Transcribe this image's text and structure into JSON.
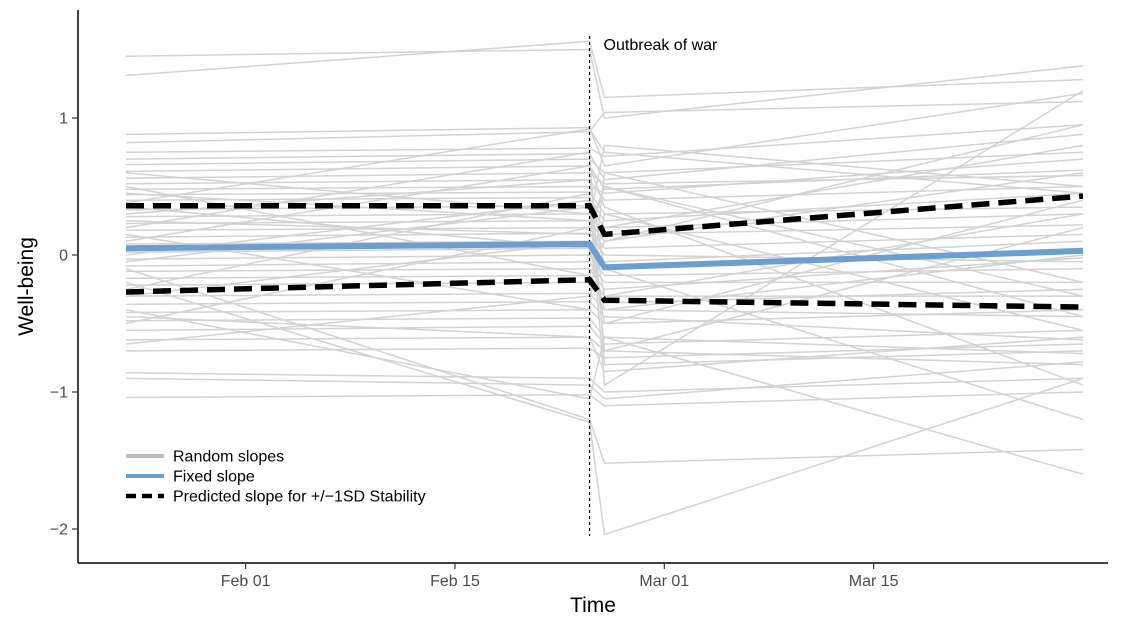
{
  "chart_data": {
    "type": "line",
    "title": "",
    "xlabel": "Time",
    "ylabel": "Well-being",
    "x_axis_type": "date",
    "xlim": [
      "2022-01-24",
      "2022-03-29"
    ],
    "ylim": [
      -2.15,
      1.8
    ],
    "x_ticks": [
      {
        "date": "2022-02-01",
        "label": "Feb 01"
      },
      {
        "date": "2022-02-15",
        "label": "Feb 15"
      },
      {
        "date": "2022-03-01",
        "label": "Mar 01"
      },
      {
        "date": "2022-03-15",
        "label": "Mar 15"
      }
    ],
    "y_ticks": [
      {
        "value": 1,
        "label": "1"
      },
      {
        "value": 0,
        "label": "0"
      },
      {
        "value": -1,
        "label": "−1"
      },
      {
        "value": -2,
        "label": "−2"
      }
    ],
    "grid": false,
    "annotation": {
      "date": "2022-02-24",
      "label": "Outbreak of war"
    },
    "colors": {
      "random": "#d3d3d3",
      "fixed": "#6a9fcf",
      "predicted": "#000000",
      "axis": "#000000"
    },
    "legend": {
      "position": "bottom-left",
      "entries": [
        {
          "label": "Random slopes",
          "style": "solid",
          "color": "#bebebe"
        },
        {
          "label": "Fixed slope",
          "style": "solid",
          "color": "#6a9fcf"
        },
        {
          "label": "Predicted slope for +/−1SD Stability",
          "style": "dashed",
          "color": "#000000"
        }
      ]
    },
    "fixed_slope": {
      "pre": {
        "x": [
          "2022-01-24",
          "2022-02-24"
        ],
        "y": [
          0.05,
          0.08
        ]
      },
      "post": {
        "x": [
          "2022-02-25",
          "2022-03-29"
        ],
        "y": [
          -0.09,
          0.03
        ]
      }
    },
    "predicted_slopes": [
      {
        "pre": {
          "x": [
            "2022-01-24",
            "2022-02-24"
          ],
          "y": [
            0.36,
            0.36
          ]
        },
        "post": {
          "x": [
            "2022-02-25",
            "2022-03-29"
          ],
          "y": [
            0.15,
            0.43
          ]
        }
      },
      {
        "pre": {
          "x": [
            "2022-01-24",
            "2022-02-24"
          ],
          "y": [
            -0.27,
            -0.18
          ]
        },
        "post": {
          "x": [
            "2022-02-25",
            "2022-03-29"
          ],
          "y": [
            -0.33,
            -0.38
          ]
        }
      }
    ],
    "random_slopes": [
      [
        1.45,
        1.5,
        1.0,
        1.38
      ],
      [
        1.31,
        1.56,
        1.15,
        1.28
      ],
      [
        0.88,
        0.93,
        0.65,
        1.18
      ],
      [
        0.82,
        0.9,
        1.04,
        1.12
      ],
      [
        0.75,
        0.78,
        0.72,
        0.95
      ],
      [
        0.7,
        0.74,
        0.55,
        0.88
      ],
      [
        0.66,
        0.7,
        0.6,
        0.75
      ],
      [
        0.61,
        0.65,
        0.48,
        0.62
      ],
      [
        0.56,
        0.6,
        0.52,
        0.58
      ],
      [
        0.52,
        0.55,
        0.4,
        0.5
      ],
      [
        0.48,
        0.5,
        0.45,
        0.7
      ],
      [
        0.44,
        0.46,
        0.3,
        0.35
      ],
      [
        0.4,
        0.42,
        0.25,
        0.45
      ],
      [
        0.33,
        0.36,
        0.2,
        0.3
      ],
      [
        0.28,
        0.3,
        0.15,
        0.22
      ],
      [
        0.23,
        0.25,
        0.1,
        0.6
      ],
      [
        0.18,
        0.2,
        0.05,
        0.15
      ],
      [
        0.13,
        0.16,
        0.0,
        -0.05
      ],
      [
        0.08,
        0.1,
        -0.05,
        0.1
      ],
      [
        0.02,
        0.05,
        -0.1,
        0.05
      ],
      [
        -0.03,
        0.0,
        -0.15,
        -0.1
      ],
      [
        -0.08,
        -0.05,
        -0.2,
        -0.2
      ],
      [
        -0.12,
        -0.1,
        -0.25,
        -0.02
      ],
      [
        -0.17,
        -0.15,
        -0.3,
        -0.3
      ],
      [
        -0.22,
        -0.2,
        -0.35,
        -0.25
      ],
      [
        -0.3,
        -0.28,
        -0.4,
        -0.45
      ],
      [
        -0.36,
        -0.34,
        -0.45,
        -0.62
      ],
      [
        -0.42,
        -0.4,
        -0.5,
        -0.4
      ],
      [
        -0.48,
        -0.46,
        -0.6,
        -0.72
      ],
      [
        -0.55,
        -0.52,
        -0.65,
        -0.55
      ],
      [
        -0.62,
        -0.6,
        -0.7,
        -0.8
      ],
      [
        -0.7,
        -0.68,
        -0.75,
        -0.65
      ],
      [
        -0.86,
        -0.9,
        -1.0,
        -0.9
      ],
      [
        -0.9,
        -0.95,
        -1.05,
        -0.78
      ],
      [
        -1.04,
        -1.02,
        -1.1,
        -1.0
      ],
      [
        0.38,
        0.92,
        0.75,
        0.45
      ],
      [
        0.2,
        0.75,
        -0.8,
        -0.7
      ],
      [
        0.1,
        0.65,
        0.35,
        -0.95
      ],
      [
        -0.1,
        -1.2,
        -1.52,
        -1.42
      ],
      [
        -0.2,
        -1.22,
        -2.04,
        -0.9
      ],
      [
        -0.4,
        -1.05,
        -0.6,
        -1.6
      ],
      [
        0.0,
        0.4,
        -0.95,
        1.2
      ],
      [
        0.3,
        0.55,
        -0.1,
        -1.2
      ],
      [
        -0.5,
        0.2,
        0.5,
        -0.3
      ],
      [
        0.6,
        0.3,
        -0.3,
        0.3
      ],
      [
        -0.65,
        -0.3,
        0.3,
        -0.55
      ],
      [
        0.5,
        -0.15,
        0.1,
        0.95
      ],
      [
        -0.3,
        0.1,
        -0.5,
        0.4
      ],
      [
        0.15,
        -0.4,
        0.6,
        -0.2
      ],
      [
        -0.25,
        0.45,
        -0.7,
        0.2
      ],
      [
        0.45,
        0.25,
        0.8,
        0.5
      ],
      [
        -0.45,
        -0.6,
        -0.85,
        -0.6
      ],
      [
        0.25,
        0.15,
        0.5,
        -0.45
      ],
      [
        -0.05,
        0.35,
        0.2,
        0.8
      ],
      [
        0.35,
        0.05,
        -0.4,
        0.0
      ]
    ]
  }
}
